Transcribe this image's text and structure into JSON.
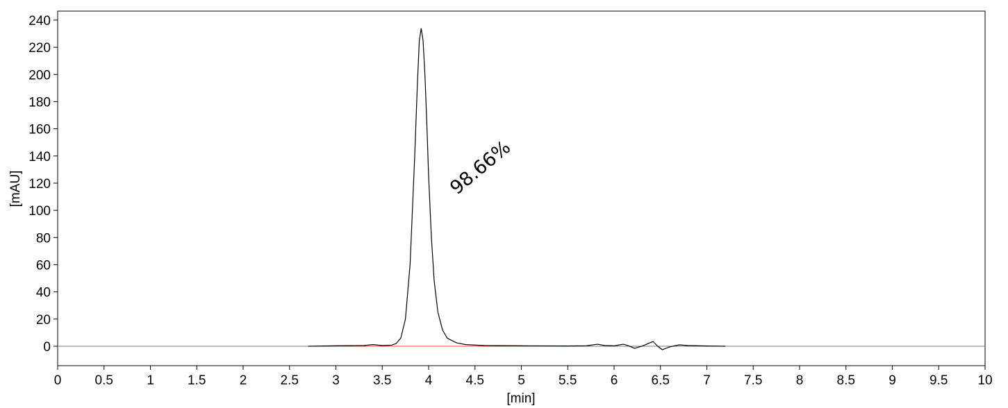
{
  "chart_data": {
    "type": "line",
    "x_label": "[min]",
    "y_label": "[mAU]",
    "annotations": [
      {
        "text": "98.66%",
        "x": 4.6,
        "y": 128
      }
    ],
    "x": [
      2.7,
      3.0,
      3.3,
      3.4,
      3.5,
      3.6,
      3.65,
      3.7,
      3.75,
      3.8,
      3.85,
      3.88,
      3.9,
      3.92,
      3.94,
      3.96,
      3.98,
      4.0,
      4.03,
      4.06,
      4.1,
      4.15,
      4.2,
      4.3,
      4.4,
      4.6,
      5.0,
      5.5,
      5.7,
      5.82,
      5.9,
      6.0,
      6.1,
      6.15,
      6.22,
      6.3,
      6.35,
      6.42,
      6.47,
      6.52,
      6.6,
      6.7,
      6.8,
      7.0,
      7.2
    ],
    "values": [
      0,
      0.3,
      0.5,
      1.2,
      0.5,
      0.8,
      2,
      6,
      20,
      60,
      140,
      195,
      225,
      234,
      225,
      200,
      165,
      125,
      80,
      48,
      25,
      12,
      6,
      2.5,
      1.2,
      0.5,
      0.3,
      0.2,
      0.3,
      1.5,
      0.5,
      0.3,
      1.5,
      0.5,
      -1.5,
      0,
      1.5,
      3.5,
      0,
      -2.5,
      -0.5,
      1,
      0.5,
      0.2,
      0
    ],
    "color": "#000000",
    "baseline": {
      "x": [
        2.7,
        5.5
      ],
      "values": [
        0,
        0
      ],
      "color": "#ff3b30"
    },
    "xlim": [
      0,
      10
    ],
    "ylim": [
      -14.3,
      246.6
    ],
    "xticks": [
      0,
      0.5,
      1,
      1.5,
      2,
      2.5,
      3,
      3.5,
      4,
      4.5,
      5,
      5.5,
      6,
      6.5,
      7,
      7.5,
      8,
      8.5,
      9,
      9.5,
      10
    ],
    "yticks": [
      0,
      20,
      40,
      60,
      80,
      100,
      120,
      140,
      160,
      180,
      200,
      220,
      240
    ]
  }
}
